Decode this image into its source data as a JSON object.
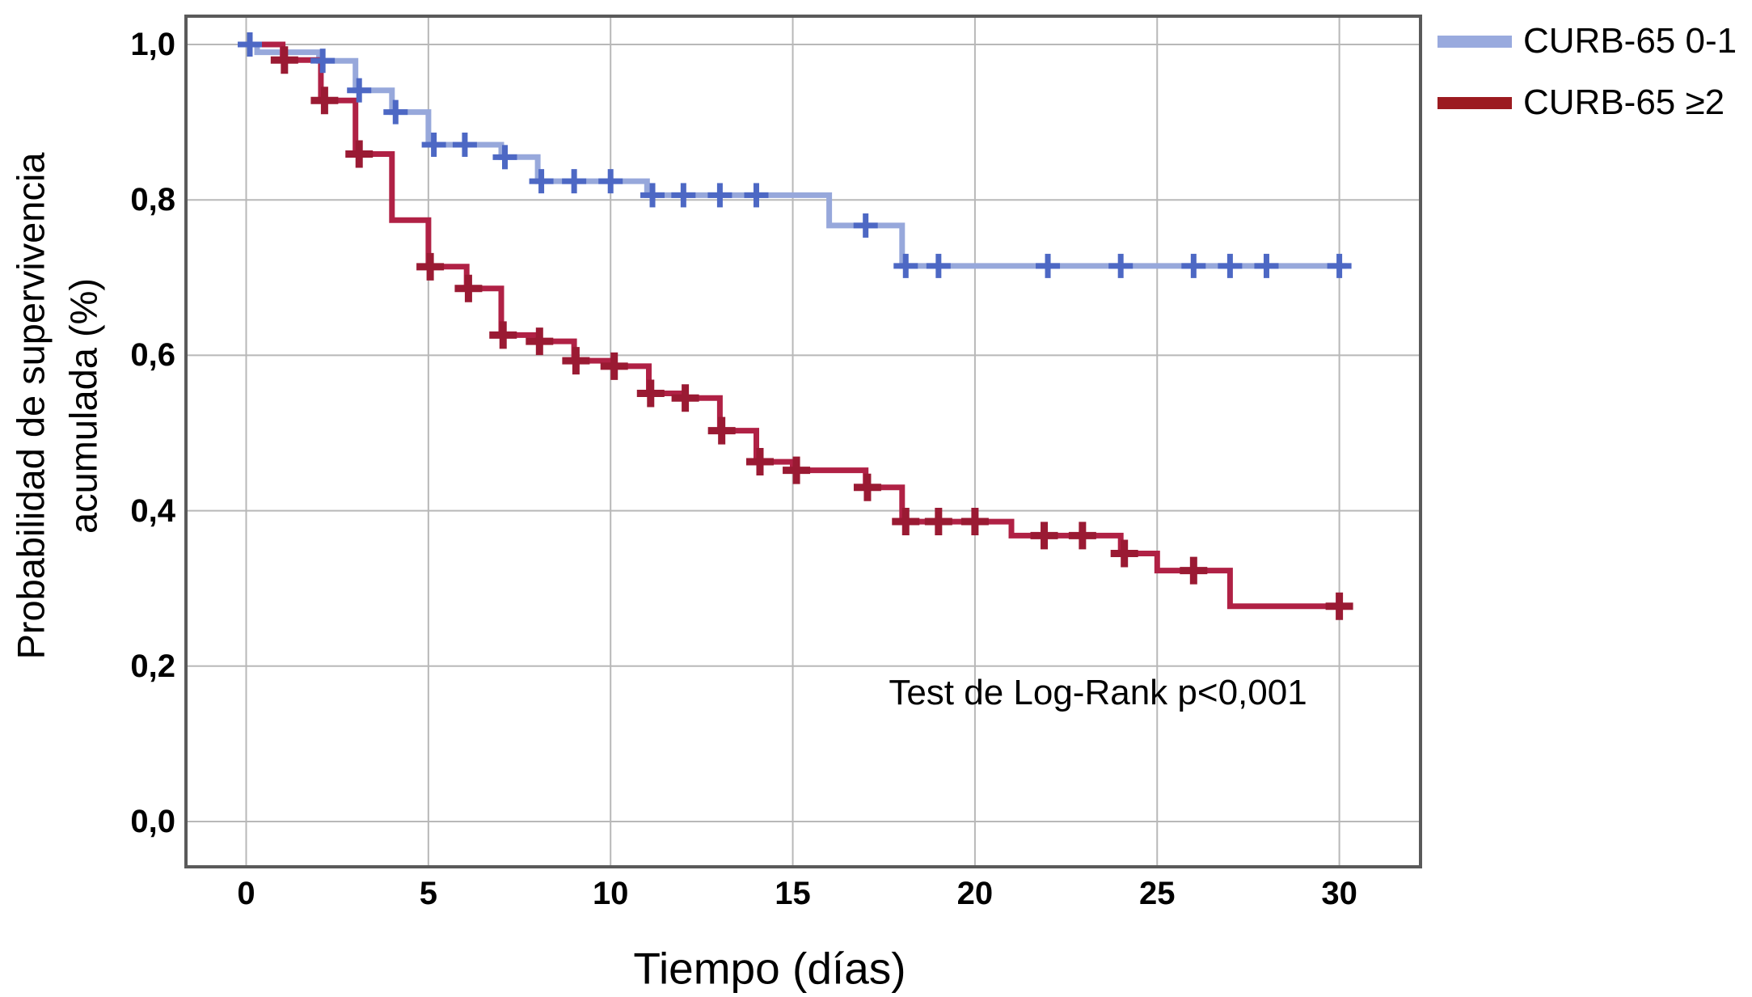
{
  "figure": {
    "background": "#ffffff"
  },
  "axes": {
    "y_title_line1": "Probabilidad de supervivencia",
    "y_title_line2": "acumulada (%)",
    "x_title": "Tiempo (días)"
  },
  "annotation": "Test de Log-Rank p<0,001",
  "legend": [
    {
      "label": "CURB-65 0-1",
      "color": "#99aade"
    },
    {
      "label": "CURB-65 ≥2",
      "color": "#9c1b20"
    }
  ],
  "chart_data": {
    "type": "line",
    "subtype": "kaplan-meier-step-curves",
    "title": "",
    "xlabel": "Tiempo (días)",
    "ylabel": "Probabilidad de supervivencia acumulada (%)",
    "xlim": [
      -1.65,
      32.25
    ],
    "ylim": [
      -0.06,
      1.04
    ],
    "grid": true,
    "grid_color": "#b8b8b8",
    "frame_color": "#5a5a5a",
    "legend_position": "top-right-outside",
    "x_tick_values": [
      0,
      5,
      10,
      15,
      20,
      25,
      30
    ],
    "x_tick_labels": [
      "0",
      "5",
      "10",
      "15",
      "20",
      "25",
      "30"
    ],
    "y_tick_values": [
      1.0,
      0.8,
      0.6,
      0.4,
      0.2,
      0.0
    ],
    "y_tick_labels": [
      "1,0",
      "0,8",
      "0,6",
      "0,4",
      "0,2",
      "0,0"
    ],
    "annotation": {
      "text": "Test de Log-Rank p<0,001",
      "x_day": 23.4,
      "y_prob": 0.165
    },
    "series": [
      {
        "name": "CURB-65 0-1",
        "color": "#97a8db",
        "censor_color": "#4d68c4",
        "steps_day_prob": [
          [
            0,
            1.0
          ],
          [
            0.3,
            0.99
          ],
          [
            2,
            0.979
          ],
          [
            3,
            0.941
          ],
          [
            4,
            0.913
          ],
          [
            5,
            0.871
          ],
          [
            7,
            0.855
          ],
          [
            8,
            0.824
          ],
          [
            11,
            0.806
          ],
          [
            16,
            0.767
          ],
          [
            18,
            0.715
          ],
          [
            30.2,
            0.715
          ]
        ],
        "censors_day_prob": [
          [
            0.1,
            1.0
          ],
          [
            2.1,
            0.979
          ],
          [
            3.1,
            0.941
          ],
          [
            4.1,
            0.913
          ],
          [
            5.15,
            0.871
          ],
          [
            6,
            0.871
          ],
          [
            7.1,
            0.855
          ],
          [
            8.1,
            0.824
          ],
          [
            9,
            0.824
          ],
          [
            10,
            0.824
          ],
          [
            11.15,
            0.806
          ],
          [
            12,
            0.806
          ],
          [
            13,
            0.806
          ],
          [
            14,
            0.806
          ],
          [
            17,
            0.767
          ],
          [
            18.1,
            0.715
          ],
          [
            19,
            0.715
          ],
          [
            22,
            0.715
          ],
          [
            24,
            0.715
          ],
          [
            26,
            0.715
          ],
          [
            27,
            0.715
          ],
          [
            28,
            0.715
          ],
          [
            30,
            0.715
          ]
        ]
      },
      {
        "name": "CURB-65 ≥2",
        "color": "#b02145",
        "censor_color": "#9a1a33",
        "steps_day_prob": [
          [
            0,
            1.0
          ],
          [
            1,
            0.98
          ],
          [
            2.05,
            0.928
          ],
          [
            3,
            0.859
          ],
          [
            4,
            0.774
          ],
          [
            5,
            0.714
          ],
          [
            6.05,
            0.686
          ],
          [
            7,
            0.626
          ],
          [
            8,
            0.618
          ],
          [
            9,
            0.593
          ],
          [
            10.05,
            0.586
          ],
          [
            11.05,
            0.551
          ],
          [
            12,
            0.545
          ],
          [
            13,
            0.503
          ],
          [
            14,
            0.463
          ],
          [
            15,
            0.452
          ],
          [
            17,
            0.43
          ],
          [
            18,
            0.386
          ],
          [
            21,
            0.368
          ],
          [
            24,
            0.345
          ],
          [
            25,
            0.323
          ],
          [
            27,
            0.277
          ],
          [
            30,
            0.277
          ]
        ],
        "censors_day_prob": [
          [
            1.05,
            0.98
          ],
          [
            2.15,
            0.928
          ],
          [
            3.1,
            0.859
          ],
          [
            5.05,
            0.714
          ],
          [
            6.1,
            0.686
          ],
          [
            7.05,
            0.626
          ],
          [
            8.05,
            0.618
          ],
          [
            9.05,
            0.593
          ],
          [
            10.1,
            0.586
          ],
          [
            11.1,
            0.551
          ],
          [
            12.05,
            0.545
          ],
          [
            13.05,
            0.503
          ],
          [
            14.1,
            0.463
          ],
          [
            15.1,
            0.452
          ],
          [
            17.05,
            0.43
          ],
          [
            18.1,
            0.386
          ],
          [
            19,
            0.386
          ],
          [
            20,
            0.386
          ],
          [
            21.9,
            0.368
          ],
          [
            22.95,
            0.368
          ],
          [
            24.1,
            0.345
          ],
          [
            26,
            0.323
          ],
          [
            30,
            0.277
          ]
        ]
      }
    ]
  }
}
